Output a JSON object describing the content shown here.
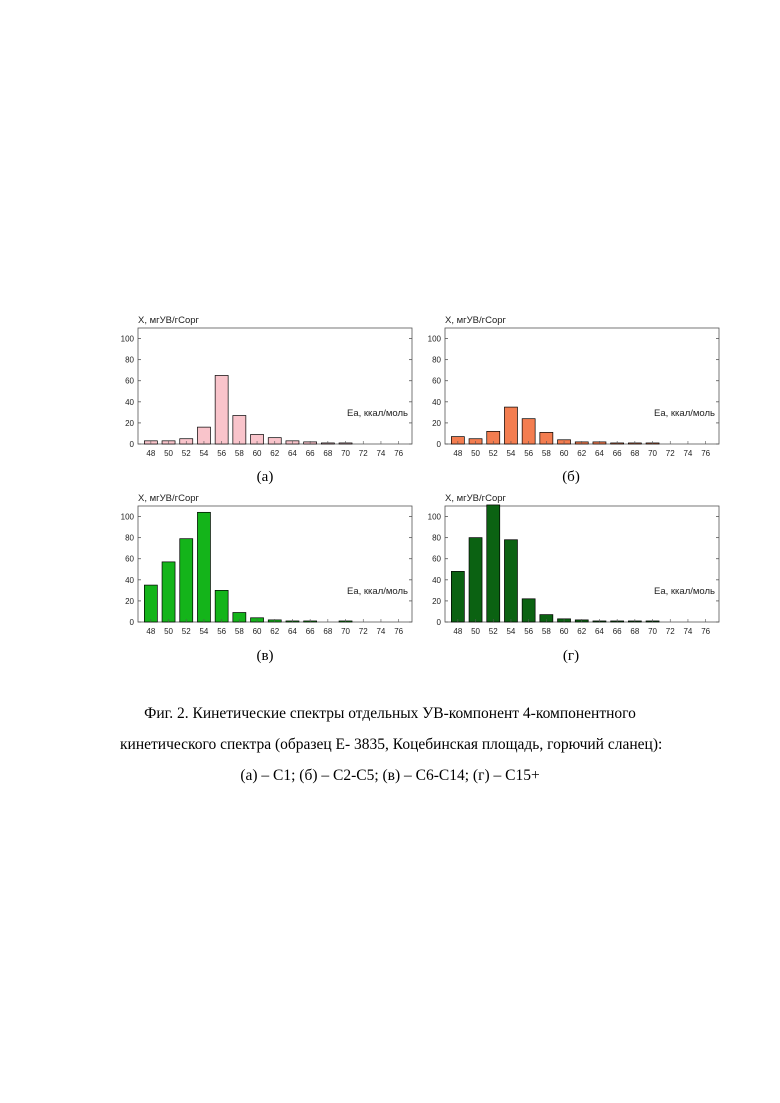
{
  "chart_data": [
    {
      "type": "bar",
      "panel_label": "(а)",
      "ylabel": "X, мгУВ/гСорг",
      "xlabel": "Ea, ккал/моль",
      "categories": [
        "48",
        "50",
        "52",
        "54",
        "56",
        "58",
        "60",
        "62",
        "64",
        "66",
        "68",
        "70",
        "72",
        "74",
        "76"
      ],
      "values": [
        3,
        3,
        5,
        16,
        65,
        27,
        9,
        6,
        3,
        2,
        1,
        1,
        0,
        0,
        0
      ],
      "ylim": [
        0,
        110
      ],
      "yticks": [
        "0",
        "20",
        "40",
        "60",
        "80",
        "100"
      ],
      "bar_color": "#f9c4cb"
    },
    {
      "type": "bar",
      "panel_label": "(б)",
      "ylabel": "X, мгУВ/гСорг",
      "xlabel": "Ea, ккал/моль",
      "categories": [
        "48",
        "50",
        "52",
        "54",
        "56",
        "58",
        "60",
        "62",
        "64",
        "66",
        "68",
        "70",
        "72",
        "74",
        "76"
      ],
      "values": [
        7,
        5,
        12,
        35,
        24,
        11,
        4,
        2,
        2,
        1,
        1,
        1,
        0,
        0,
        0
      ],
      "ylim": [
        0,
        110
      ],
      "yticks": [
        "0",
        "20",
        "40",
        "60",
        "80",
        "100"
      ],
      "bar_color": "#f37d50"
    },
    {
      "type": "bar",
      "panel_label": "(в)",
      "ylabel": "X, мгУВ/гСорг",
      "xlabel": "Ea, ккал/моль",
      "categories": [
        "48",
        "50",
        "52",
        "54",
        "56",
        "58",
        "60",
        "62",
        "64",
        "66",
        "68",
        "70",
        "72",
        "74",
        "76"
      ],
      "values": [
        35,
        57,
        79,
        104,
        30,
        9,
        4,
        2,
        1,
        1,
        0,
        1,
        0,
        0,
        0
      ],
      "ylim": [
        0,
        110
      ],
      "yticks": [
        "0",
        "20",
        "40",
        "60",
        "80",
        "100"
      ],
      "bar_color": "#14b41a"
    },
    {
      "type": "bar",
      "panel_label": "(г)",
      "ylabel": "X, мгУВ/гСорг",
      "xlabel": "Ea, ккал/моль",
      "categories": [
        "48",
        "50",
        "52",
        "54",
        "56",
        "58",
        "60",
        "62",
        "64",
        "66",
        "68",
        "70",
        "72",
        "74",
        "76"
      ],
      "values": [
        48,
        80,
        111,
        78,
        22,
        7,
        3,
        2,
        1,
        1,
        1,
        1,
        0,
        0,
        0
      ],
      "ylim": [
        0,
        110
      ],
      "yticks": [
        "0",
        "20",
        "40",
        "60",
        "80",
        "100"
      ],
      "bar_color": "#0b6212"
    }
  ],
  "caption": {
    "line1": "Фиг. 2. Кинетические спектры отдельных УВ-компонент 4-компонентного",
    "line2": "кинетического спектра (образец Е- 3835, Коцебинская площадь, горючий сланец):",
    "line3": "(а) – С1; (б) – С2-С5; (в) – С6-С14; (г) – С15+"
  }
}
